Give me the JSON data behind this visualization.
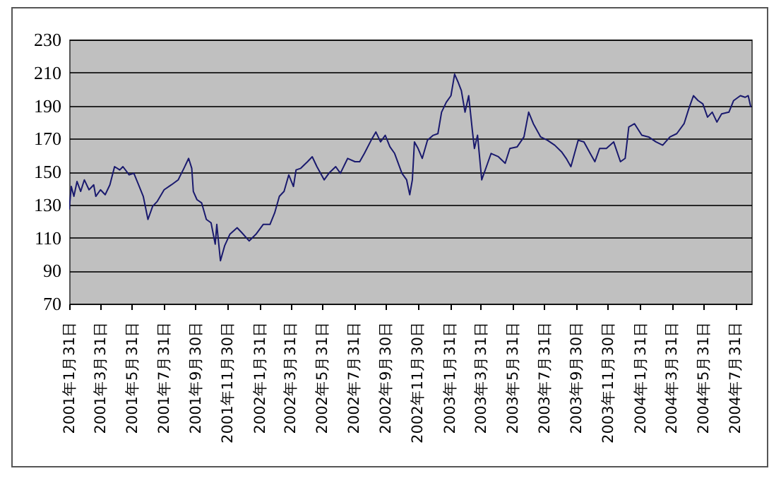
{
  "chart_data": {
    "type": "line",
    "color": "#1a1a6e",
    "grid": "y",
    "ylim": [
      70,
      230
    ],
    "yticks": [
      70,
      90,
      110,
      130,
      150,
      170,
      190,
      210,
      230
    ],
    "xlim": [
      "2001-01-31",
      "2004-08-31"
    ],
    "xticks": [
      {
        "value": "2001-01-31",
        "label": "2001年1月31日"
      },
      {
        "value": "2001-03-31",
        "label": "2001年3月31日"
      },
      {
        "value": "2001-05-31",
        "label": "2001年5月31日"
      },
      {
        "value": "2001-07-31",
        "label": "2001年7月31日"
      },
      {
        "value": "2001-09-30",
        "label": "2001年9月30日"
      },
      {
        "value": "2001-11-30",
        "label": "2001年11月30日"
      },
      {
        "value": "2002-01-31",
        "label": "2002年1月31日"
      },
      {
        "value": "2002-03-31",
        "label": "2002年3月31日"
      },
      {
        "value": "2002-05-31",
        "label": "2002年5月31日"
      },
      {
        "value": "2002-07-31",
        "label": "2002年7月31日"
      },
      {
        "value": "2002-09-30",
        "label": "2002年9月30日"
      },
      {
        "value": "2002-11-30",
        "label": "2002年11月30日"
      },
      {
        "value": "2003-01-31",
        "label": "2003年1月31日"
      },
      {
        "value": "2003-03-31",
        "label": "2003年3月31日"
      },
      {
        "value": "2003-05-31",
        "label": "2003年5月31日"
      },
      {
        "value": "2003-07-31",
        "label": "2003年7月31日"
      },
      {
        "value": "2003-09-30",
        "label": "2003年9月30日"
      },
      {
        "value": "2003-11-30",
        "label": "2003年11月30日"
      },
      {
        "value": "2004-01-31",
        "label": "2004年1月31日"
      },
      {
        "value": "2004-03-31",
        "label": "2004年3月31日"
      },
      {
        "value": "2004-05-31",
        "label": "2004年5月31日"
      },
      {
        "value": "2004-07-31",
        "label": "2004年7月31日"
      }
    ],
    "x": [
      "2001-01-31",
      "2001-02-04",
      "2001-02-09",
      "2001-02-15",
      "2001-02-22",
      "2001-03-01",
      "2001-03-10",
      "2001-03-19",
      "2001-03-23",
      "2001-04-01",
      "2001-04-10",
      "2001-04-19",
      "2001-04-28",
      "2001-05-08",
      "2001-05-14",
      "2001-05-26",
      "2001-06-04",
      "2001-06-13",
      "2001-06-22",
      "2001-07-01",
      "2001-07-10",
      "2001-07-19",
      "2001-08-01",
      "2001-08-15",
      "2001-08-28",
      "2001-09-08",
      "2001-09-17",
      "2001-09-23",
      "2001-09-26",
      "2001-10-03",
      "2001-10-12",
      "2001-10-21",
      "2001-10-30",
      "2001-11-07",
      "2001-11-10",
      "2001-11-17",
      "2001-11-25",
      "2001-12-05",
      "2001-12-19",
      "2001-12-28",
      "2002-01-11",
      "2002-01-24",
      "2002-02-07",
      "2002-02-20",
      "2002-03-01",
      "2002-03-10",
      "2002-03-19",
      "2002-03-28",
      "2002-04-06",
      "2002-04-11",
      "2002-04-20",
      "2002-05-03",
      "2002-05-12",
      "2002-05-21",
      "2002-06-04",
      "2002-06-13",
      "2002-06-26",
      "2002-07-05",
      "2002-07-19",
      "2002-08-02",
      "2002-08-11",
      "2002-08-20",
      "2002-09-02",
      "2002-09-11",
      "2002-09-20",
      "2002-09-29",
      "2002-10-08",
      "2002-10-17",
      "2002-10-31",
      "2002-11-09",
      "2002-11-15",
      "2002-11-20",
      "2002-11-24",
      "2002-12-01",
      "2002-12-09",
      "2002-12-19",
      "2002-12-30",
      "2003-01-08",
      "2003-01-15",
      "2003-01-24",
      "2003-02-02",
      "2003-02-09",
      "2003-02-16",
      "2003-02-22",
      "2003-03-01",
      "2003-03-08",
      "2003-03-15",
      "2003-03-19",
      "2003-03-25",
      "2003-04-02",
      "2003-04-11",
      "2003-04-20",
      "2003-05-04",
      "2003-05-17",
      "2003-05-26",
      "2003-06-09",
      "2003-06-22",
      "2003-07-01",
      "2003-07-10",
      "2003-07-24",
      "2003-08-06",
      "2003-08-20",
      "2003-09-02",
      "2003-09-11",
      "2003-09-20",
      "2003-10-04",
      "2003-10-15",
      "2003-10-27",
      "2003-11-05",
      "2003-11-14",
      "2003-11-27",
      "2003-12-11",
      "2003-12-24",
      "2004-01-02",
      "2004-01-09",
      "2004-01-20",
      "2004-02-03",
      "2004-02-16",
      "2004-03-01",
      "2004-03-14",
      "2004-03-28",
      "2004-04-10",
      "2004-04-24",
      "2004-05-03",
      "2004-05-12",
      "2004-05-21",
      "2004-05-30",
      "2004-06-08",
      "2004-06-17",
      "2004-06-26",
      "2004-07-05",
      "2004-07-19",
      "2004-07-28",
      "2004-08-10",
      "2004-08-19",
      "2004-08-25",
      "2004-08-30"
    ],
    "values": [
      127,
      141,
      135,
      144,
      138,
      145,
      139,
      142,
      135,
      139,
      136,
      142,
      153,
      151,
      153,
      148,
      149,
      142,
      135,
      121,
      129,
      132,
      139,
      142,
      145,
      152,
      158,
      152,
      138,
      133,
      131,
      121,
      119,
      106,
      118,
      96,
      105,
      112,
      116,
      113,
      108,
      112,
      118,
      118,
      125,
      135,
      138,
      148,
      141,
      151,
      152,
      156,
      159,
      153,
      145,
      149,
      153,
      149,
      158,
      156,
      156,
      161,
      169,
      174,
      168,
      172,
      165,
      161,
      149,
      145,
      136,
      145,
      168,
      164,
      158,
      169,
      172,
      173,
      186,
      192,
      196,
      209,
      204,
      199,
      186,
      196,
      175,
      164,
      172,
      145,
      153,
      161,
      159,
      155,
      164,
      165,
      171,
      186,
      179,
      171,
      169,
      166,
      162,
      158,
      153,
      169,
      168,
      161,
      156,
      164,
      164,
      168,
      156,
      158,
      177,
      179,
      172,
      171,
      168,
      166,
      171,
      173,
      179,
      188,
      196,
      193,
      191,
      183,
      186,
      180,
      185,
      186,
      193,
      196,
      195,
      196,
      189
    ]
  }
}
